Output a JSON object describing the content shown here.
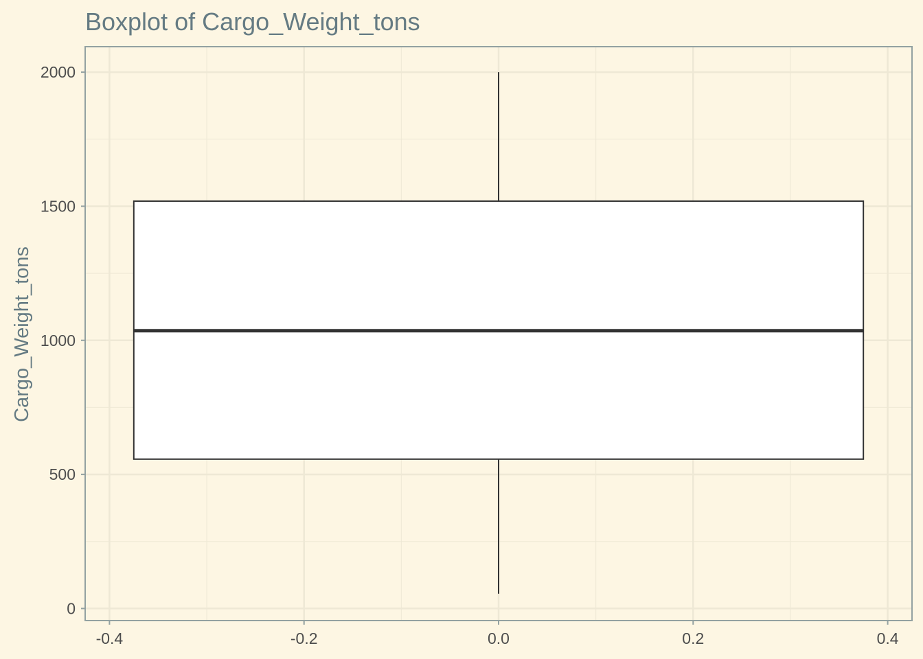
{
  "chart_data": {
    "type": "box",
    "title": "Boxplot of Cargo_Weight_tons",
    "xlabel": "",
    "ylabel": "Cargo_Weight_tons",
    "xlim": [
      -0.425,
      0.425
    ],
    "ylim": [
      -45,
      2095
    ],
    "x_ticks": [
      -0.4,
      -0.2,
      0.0,
      0.2,
      0.4
    ],
    "x_tick_labels": [
      "-0.4",
      "-0.2",
      "0.0",
      "0.2",
      "0.4"
    ],
    "y_ticks": [
      0,
      500,
      1000,
      1500,
      2000
    ],
    "y_tick_labels": [
      "0",
      "500",
      "1000",
      "1500",
      "2000"
    ],
    "grid": true,
    "box": {
      "x_center": 0.0,
      "x_left": -0.375,
      "x_right": 0.375,
      "whisker_low": 55,
      "q1": 557,
      "median": 1036,
      "q3": 1519,
      "whisker_high": 2000
    },
    "colors": {
      "background": "#FDF6E3",
      "grid": "#EEE8D5",
      "panel_border": "#93A1A1",
      "box_fill": "#FFFFFF",
      "box_line": "#333333",
      "text": "#657B83",
      "tick_text": "#4D4D4D"
    }
  }
}
